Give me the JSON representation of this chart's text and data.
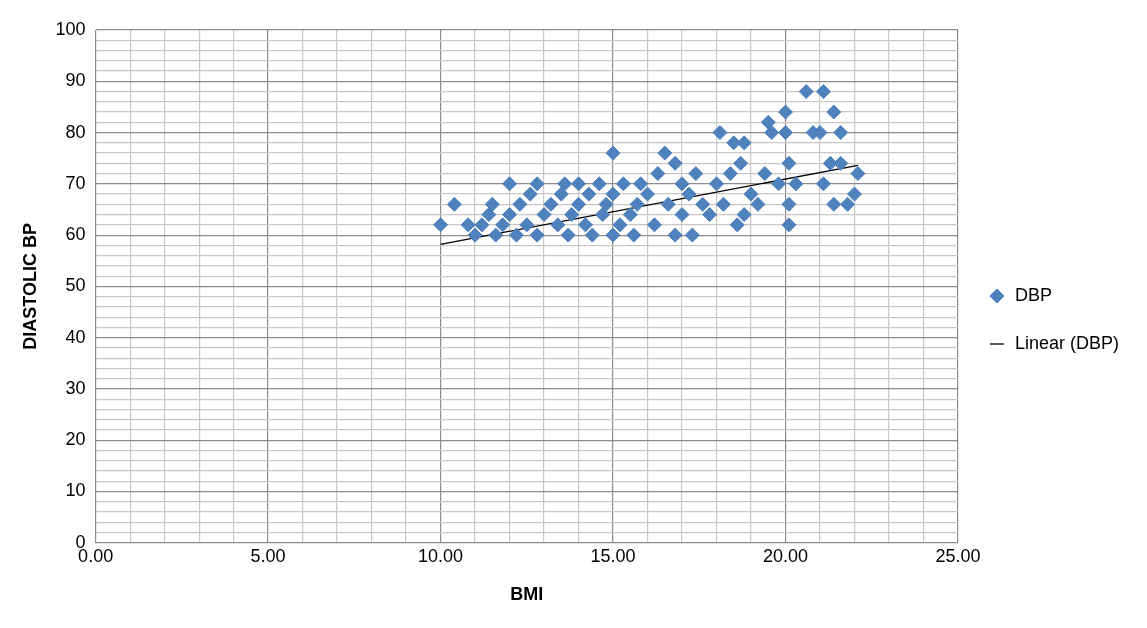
{
  "chart_data": {
    "type": "scatter",
    "xlabel": "BMI",
    "ylabel": "DIASTOLIC BP",
    "xlim": [
      0,
      25
    ],
    "ylim": [
      0,
      100
    ],
    "xticks": [
      {
        "value": 0,
        "label": "0.00"
      },
      {
        "value": 1,
        "label": null
      },
      {
        "value": 2,
        "label": null
      },
      {
        "value": 3,
        "label": null
      },
      {
        "value": 4,
        "label": null
      },
      {
        "value": 5,
        "label": "5.00"
      },
      {
        "value": 6,
        "label": null
      },
      {
        "value": 7,
        "label": null
      },
      {
        "value": 8,
        "label": null
      },
      {
        "value": 9,
        "label": null
      },
      {
        "value": 10,
        "label": "10.00"
      },
      {
        "value": 11,
        "label": null
      },
      {
        "value": 12,
        "label": null
      },
      {
        "value": 13,
        "label": null
      },
      {
        "value": 14,
        "label": null
      },
      {
        "value": 15,
        "label": "15.00"
      },
      {
        "value": 16,
        "label": null
      },
      {
        "value": 17,
        "label": null
      },
      {
        "value": 18,
        "label": null
      },
      {
        "value": 19,
        "label": null
      },
      {
        "value": 20,
        "label": "20.00"
      },
      {
        "value": 21,
        "label": null
      },
      {
        "value": 22,
        "label": null
      },
      {
        "value": 23,
        "label": null
      },
      {
        "value": 24,
        "label": null
      },
      {
        "value": 25,
        "label": "25.00"
      }
    ],
    "yticks": [
      0,
      {
        "value": 2,
        "label": null
      },
      {
        "value": 4,
        "label": null
      },
      {
        "value": 6,
        "label": null
      },
      {
        "value": 8,
        "label": null
      },
      10,
      {
        "value": 12,
        "label": null
      },
      {
        "value": 14,
        "label": null
      },
      {
        "value": 16,
        "label": null
      },
      {
        "value": 18,
        "label": null
      },
      20,
      {
        "value": 22,
        "label": null
      },
      {
        "value": 24,
        "label": null
      },
      {
        "value": 26,
        "label": null
      },
      {
        "value": 28,
        "label": null
      },
      30,
      {
        "value": 32,
        "label": null
      },
      {
        "value": 34,
        "label": null
      },
      {
        "value": 36,
        "label": null
      },
      {
        "value": 38,
        "label": null
      },
      40,
      {
        "value": 42,
        "label": null
      },
      {
        "value": 44,
        "label": null
      },
      {
        "value": 46,
        "label": null
      },
      {
        "value": 48,
        "label": null
      },
      50,
      {
        "value": 52,
        "label": null
      },
      {
        "value": 54,
        "label": null
      },
      {
        "value": 56,
        "label": null
      },
      {
        "value": 58,
        "label": null
      },
      60,
      {
        "value": 62,
        "label": null
      },
      {
        "value": 64,
        "label": null
      },
      {
        "value": 66,
        "label": null
      },
      {
        "value": 68,
        "label": null
      },
      70,
      {
        "value": 72,
        "label": null
      },
      {
        "value": 74,
        "label": null
      },
      {
        "value": 76,
        "label": null
      },
      {
        "value": 78,
        "label": null
      },
      80,
      {
        "value": 82,
        "label": null
      },
      {
        "value": 84,
        "label": null
      },
      {
        "value": 86,
        "label": null
      },
      {
        "value": 88,
        "label": null
      },
      90,
      {
        "value": 92,
        "label": null
      },
      {
        "value": 94,
        "label": null
      },
      {
        "value": 96,
        "label": null
      },
      {
        "value": 98,
        "label": null
      },
      100
    ],
    "grid": true,
    "legend": "right",
    "marker": "diamond",
    "series": [
      {
        "name": "DBP",
        "color": "#4f81bd",
        "x": [
          10.0,
          10.4,
          10.8,
          11.0,
          11.2,
          11.4,
          11.5,
          11.6,
          11.8,
          12.0,
          12.0,
          12.2,
          12.3,
          12.5,
          12.6,
          12.8,
          12.8,
          13.0,
          13.2,
          13.4,
          13.5,
          13.6,
          13.7,
          13.8,
          14.0,
          14.0,
          14.2,
          14.3,
          14.4,
          14.6,
          14.7,
          14.8,
          15.0,
          15.0,
          15.0,
          15.2,
          15.3,
          15.5,
          15.6,
          15.7,
          15.8,
          16.0,
          16.2,
          16.3,
          16.5,
          16.6,
          16.8,
          16.8,
          17.0,
          17.0,
          17.2,
          17.3,
          17.4,
          17.6,
          17.8,
          18.0,
          18.1,
          18.2,
          18.4,
          18.5,
          18.6,
          18.7,
          18.8,
          18.8,
          19.0,
          19.2,
          19.4,
          19.5,
          19.6,
          19.8,
          20.0,
          20.0,
          20.1,
          20.1,
          20.1,
          20.3,
          20.6,
          20.8,
          21.0,
          21.1,
          21.1,
          21.3,
          21.4,
          21.4,
          21.6,
          21.6,
          21.8,
          22.0,
          22.1
        ],
        "values": [
          62,
          66,
          62,
          60,
          62,
          64,
          66,
          60,
          62,
          70,
          64,
          60,
          66,
          62,
          68,
          70,
          60,
          64,
          66,
          62,
          68,
          70,
          60,
          64,
          70,
          66,
          62,
          68,
          60,
          70,
          64,
          66,
          76,
          60,
          68,
          62,
          70,
          64,
          60,
          66,
          70,
          68,
          62,
          72,
          76,
          66,
          74,
          60,
          70,
          64,
          68,
          60,
          72,
          66,
          64,
          70,
          80,
          66,
          72,
          78,
          62,
          74,
          78,
          64,
          68,
          66,
          72,
          82,
          80,
          70,
          84,
          80,
          74,
          66,
          62,
          70,
          88,
          80,
          80,
          88,
          70,
          74,
          84,
          66,
          80,
          74,
          66,
          68,
          72
        ]
      },
      {
        "name": "Linear (DBP)",
        "type": "line",
        "color": "#000000",
        "line_style": "solid",
        "marker": "none",
        "x": [
          10.0,
          22.1
        ],
        "values": [
          58.2,
          73.6
        ]
      }
    ]
  }
}
